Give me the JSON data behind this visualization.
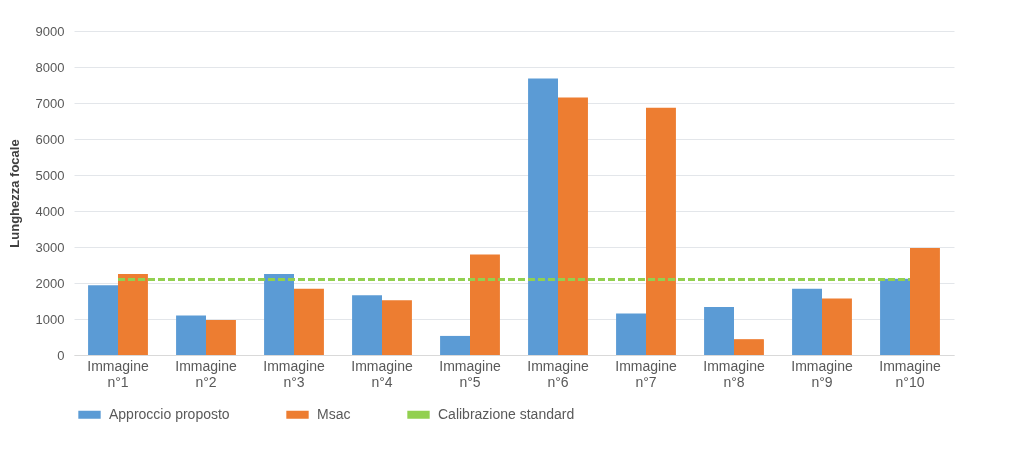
{
  "chart_data": {
    "type": "bar",
    "ylabel": "Lunghezza focale",
    "categories": [
      "Immagine n°1",
      "Immagine n°2",
      "Immagine n°3",
      "Immagine n°4",
      "Immagine n°5",
      "Immagine n°6",
      "Immagine n°7",
      "Immagine n°8",
      "Immagine n°9",
      "Immagine n°10"
    ],
    "series": [
      {
        "name": "Approccio proposto",
        "color": "#5b9bd5",
        "values": [
          1940,
          1100,
          2250,
          1660,
          530,
          7680,
          1150,
          1330,
          1840,
          2120
        ]
      },
      {
        "name": "Msac",
        "color": "#ed7d31",
        "values": [
          2250,
          970,
          1840,
          1520,
          2790,
          7150,
          6870,
          440,
          1570,
          2970
        ]
      },
      {
        "name": "Calibrazione standard",
        "type": "line",
        "color": "#92d050",
        "line_style": "dashed",
        "marker": "none",
        "values": [
          2100,
          2100,
          2100,
          2100,
          2100,
          2100,
          2100,
          2100,
          2100,
          2100
        ]
      }
    ],
    "ylim": [
      0,
      9000
    ],
    "yticks": [
      0,
      1000,
      2000,
      3000,
      4000,
      5000,
      6000,
      7000,
      8000,
      9000
    ],
    "grid": "y",
    "legend": "bottom"
  }
}
